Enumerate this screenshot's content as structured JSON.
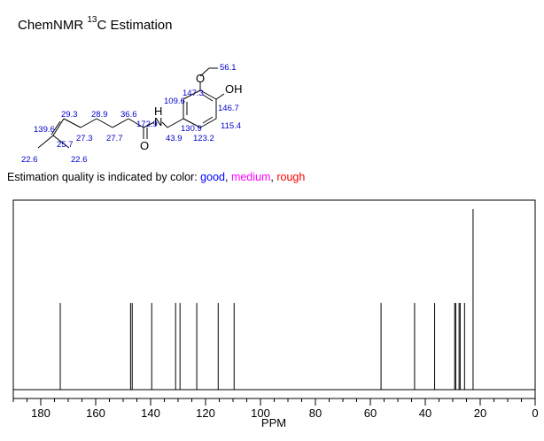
{
  "header": {
    "title_prefix": "ChemNMR ",
    "title_sup": "13",
    "title_suffix": "C Estimation"
  },
  "structure": {
    "atoms": {
      "O_methoxy": "O",
      "OH": "OH",
      "NH": "H",
      "N": "N",
      "O_carbonyl": "O"
    },
    "shift_labels": [
      "56.1",
      "147.3",
      "109.6",
      "146.7",
      "115.4",
      "123.2",
      "130.9",
      "43.9",
      "172.9",
      "36.6",
      "28.9",
      "29.3",
      "139.6",
      "27.3",
      "27.7",
      "25.7",
      "22.6",
      "22.6"
    ]
  },
  "quality_note": {
    "prefix": "Estimation quality is indicated by color: ",
    "good": "good",
    "sep1": ", ",
    "medium": "medium",
    "sep2": ", ",
    "rough": "rough"
  },
  "colors": {
    "good": "#0000ff",
    "medium": "#ff00ff",
    "rough": "#ff0000",
    "label": "#0000cc"
  },
  "chart_data": {
    "type": "bar",
    "xlabel": "PPM",
    "xlim": [
      190,
      0
    ],
    "x_ticks": [
      180,
      160,
      140,
      120,
      100,
      80,
      60,
      40,
      20,
      0
    ],
    "peaks": [
      {
        "ppm": 172.9,
        "intensity": 1
      },
      {
        "ppm": 147.3,
        "intensity": 1
      },
      {
        "ppm": 146.7,
        "intensity": 1
      },
      {
        "ppm": 139.6,
        "intensity": 1
      },
      {
        "ppm": 130.9,
        "intensity": 1
      },
      {
        "ppm": 129.3,
        "intensity": 1
      },
      {
        "ppm": 123.2,
        "intensity": 1
      },
      {
        "ppm": 115.4,
        "intensity": 1
      },
      {
        "ppm": 109.6,
        "intensity": 1
      },
      {
        "ppm": 56.1,
        "intensity": 1
      },
      {
        "ppm": 43.9,
        "intensity": 1
      },
      {
        "ppm": 36.6,
        "intensity": 1
      },
      {
        "ppm": 29.3,
        "intensity": 1
      },
      {
        "ppm": 28.9,
        "intensity": 1
      },
      {
        "ppm": 27.7,
        "intensity": 1
      },
      {
        "ppm": 27.3,
        "intensity": 1
      },
      {
        "ppm": 25.7,
        "intensity": 1
      },
      {
        "ppm": 22.6,
        "intensity": 2
      }
    ]
  }
}
